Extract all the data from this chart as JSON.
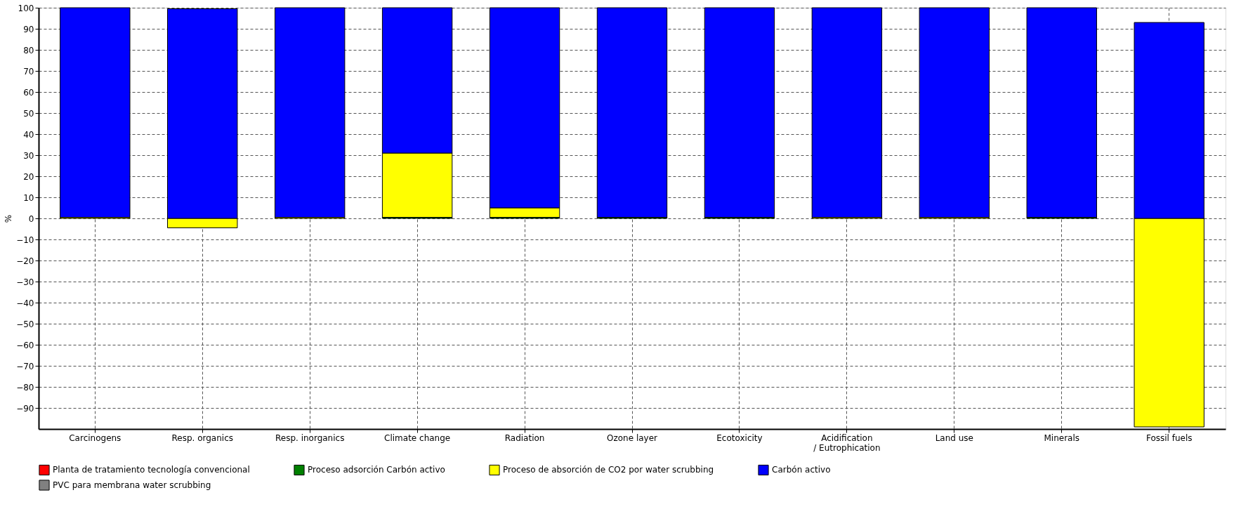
{
  "chart_data": {
    "type": "bar",
    "stacked": true,
    "ylabel": "%",
    "ylim": [
      -100,
      100
    ],
    "yticks": [
      -90,
      -80,
      -70,
      -60,
      -50,
      -40,
      -30,
      -20,
      -10,
      0,
      10,
      20,
      30,
      40,
      50,
      60,
      70,
      80,
      90,
      100
    ],
    "grid": true,
    "legend": "bottom",
    "categories": [
      "Carcinogens",
      "Resp. organics",
      "Resp. inorganics",
      "Climate change",
      "Radiation",
      "Ozone layer",
      "Ecotoxicity",
      "Acidification\n/ Eutrophication",
      "Land use",
      "Minerals",
      "Fossil fuels"
    ],
    "series": [
      {
        "name": "Planta de tratamiento tecnología convencional",
        "color": "#ff0000",
        "values": [
          0,
          0,
          0,
          0,
          0,
          0,
          0,
          0,
          0,
          0,
          0
        ]
      },
      {
        "name": "Proceso adsorción Carbón activo",
        "color": "#008000",
        "values": [
          0,
          0,
          0,
          0.5,
          0.5,
          0.5,
          0.5,
          0,
          0,
          0.5,
          0
        ]
      },
      {
        "name": "Proceso de absorción de CO2 por water scrubbing",
        "color": "#ffff00",
        "values": [
          0.5,
          -4.5,
          0.5,
          30.5,
          4.5,
          0,
          0,
          0.5,
          0.5,
          0,
          -99
        ]
      },
      {
        "name": "Carbón activo",
        "color": "#0000ff",
        "values": [
          99.5,
          99.5,
          99.5,
          69,
          95,
          99.5,
          99.5,
          99.5,
          99.5,
          99.5,
          93
        ]
      },
      {
        "name": "PVC para membrana water scrubbing",
        "color": "#808080",
        "values": [
          0,
          0,
          0,
          0,
          0,
          0,
          0,
          0,
          0,
          0,
          0
        ]
      }
    ]
  }
}
